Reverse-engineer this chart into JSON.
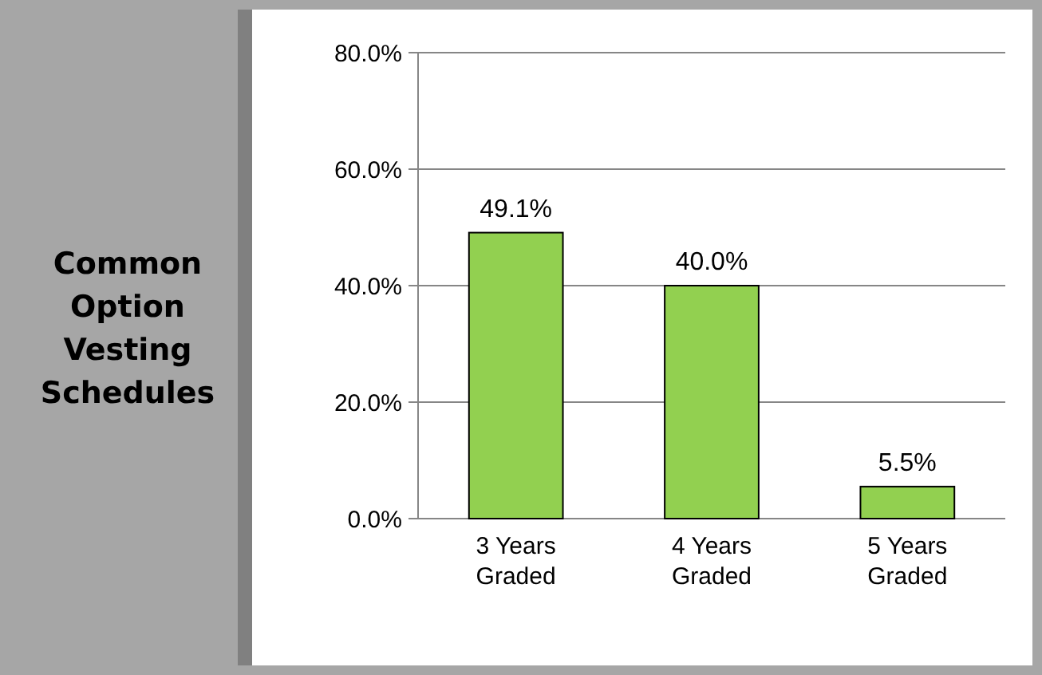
{
  "chart_data": {
    "type": "bar",
    "title": "Common Option Vesting Schedules",
    "categories": [
      "3 Years Graded",
      "4 Years Graded",
      "5 Years Graded"
    ],
    "values": [
      49.1,
      40.0,
      5.5
    ],
    "value_labels": [
      "49.1%",
      "40.0%",
      "5.5%"
    ],
    "color": "#92d050",
    "ylim": [
      0,
      80
    ],
    "yticks": [
      {
        "value": 0,
        "label": "0.0%"
      },
      {
        "value": 20,
        "label": "20.0%"
      },
      {
        "value": 40,
        "label": "40.0%"
      },
      {
        "value": 60,
        "label": "60.0%"
      },
      {
        "value": 80,
        "label": "80.0%"
      }
    ],
    "grid": "y"
  }
}
